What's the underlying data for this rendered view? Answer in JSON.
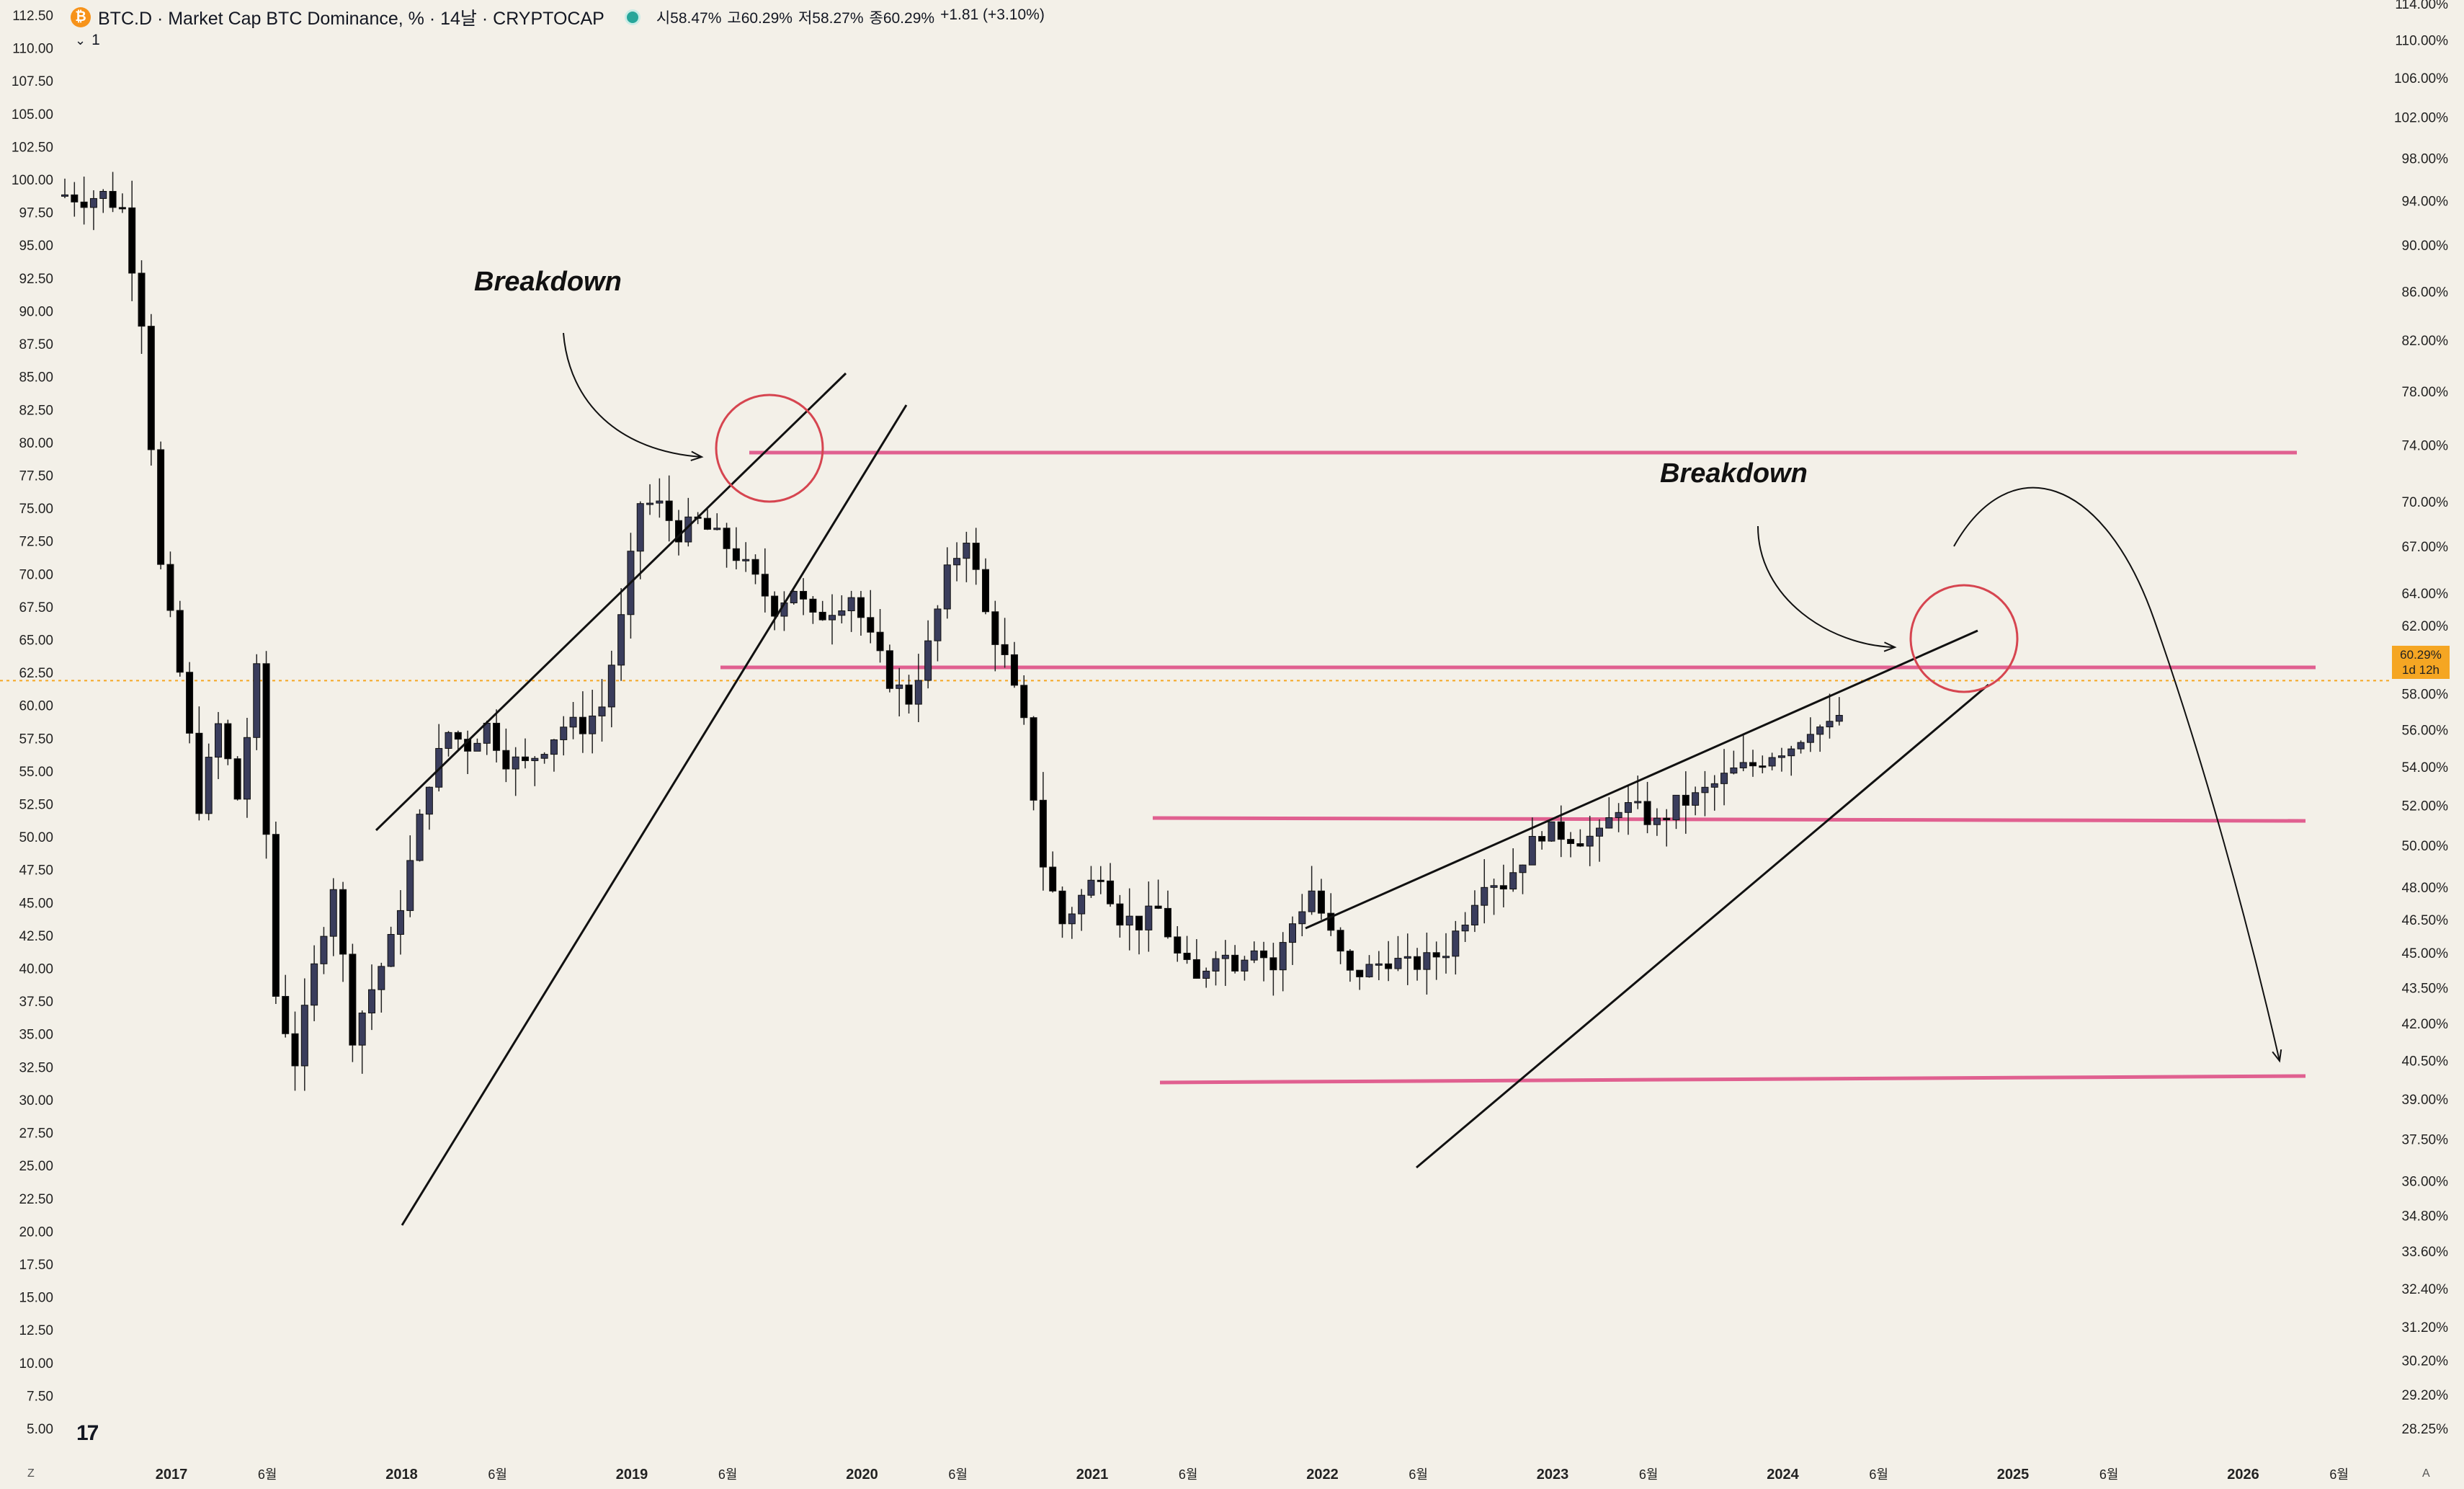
{
  "header": {
    "symbol_icon": "bitcoin-icon",
    "coin_glyph": "₿",
    "title": "BTC.D · Market Cap BTC Dominance, % · 14날 · CRYPTOCAP",
    "open_label": "시",
    "open_value": "58.47%",
    "high_label": "고",
    "high_value": "60.29%",
    "low_label": "저",
    "low_value": "58.27%",
    "close_label": "종",
    "close_value": "60.29%",
    "change": "+1.81 (+3.10%)",
    "collapse_count": "1"
  },
  "price_tag": {
    "value": "60.29%",
    "countdown": "1d 12h"
  },
  "annotations": {
    "breakdown_1": "Breakdown",
    "breakdown_2": "Breakdown"
  },
  "footer": {
    "tv_logo": "17",
    "left_btn": "Z",
    "right_btn": "A"
  },
  "colors": {
    "background": "#f3f0e8",
    "candle_up": "#3a3d5c",
    "candle_down": "#000000",
    "level_line": "#e06090",
    "circle": "#d64550",
    "current_price_line": "#f5a623"
  },
  "chart_data": {
    "type": "candlestick",
    "title": "BTC.D · Market Cap BTC Dominance, % · 14날 · CRYPTOCAP",
    "interval": "14날",
    "x_ticks": [
      "2017",
      "6월",
      "2018",
      "6월",
      "2019",
      "6월",
      "2020",
      "6월",
      "2021",
      "6월",
      "2022",
      "6월",
      "2023",
      "6월",
      "2024",
      "6월",
      "2025",
      "6월",
      "2026",
      "6월"
    ],
    "left_axis": {
      "ylim": [
        5,
        112.5
      ],
      "ticks": [
        "112.50",
        "110.00",
        "107.50",
        "105.00",
        "102.50",
        "100.00",
        "97.50",
        "95.00",
        "92.50",
        "90.00",
        "87.50",
        "85.00",
        "82.50",
        "80.00",
        "77.50",
        "75.00",
        "72.50",
        "70.00",
        "67.50",
        "65.00",
        "62.50",
        "60.00",
        "57.50",
        "55.00",
        "52.50",
        "50.00",
        "47.50",
        "45.00",
        "42.50",
        "40.00",
        "37.50",
        "35.00",
        "32.50",
        "30.00",
        "27.50",
        "25.00",
        "22.50",
        "20.00",
        "17.50",
        "15.00",
        "12.50",
        "10.00",
        "7.50",
        "5.00"
      ]
    },
    "right_axis": {
      "scale": "log",
      "ticks": [
        "114.00%",
        "110.00%",
        "106.00%",
        "102.00%",
        "98.00%",
        "94.00%",
        "90.00%",
        "86.00%",
        "82.00%",
        "78.00%",
        "74.00%",
        "70.00%",
        "67.00%",
        "64.00%",
        "62.00%",
        "60.29%",
        "58.00%",
        "56.00%",
        "54.00%",
        "52.00%",
        "50.00%",
        "48.00%",
        "46.50%",
        "45.00%",
        "43.50%",
        "42.00%",
        "40.50%",
        "39.00%",
        "37.50%",
        "36.00%",
        "34.80%",
        "33.60%",
        "32.40%",
        "31.20%",
        "30.20%",
        "29.20%",
        "28.25%"
      ]
    },
    "close_path": [
      [
        "2017-01",
        98.9
      ],
      [
        "2017-02",
        98.6
      ],
      [
        "2017-03",
        98.9
      ],
      [
        "2017-04",
        97.8
      ],
      [
        "2017-05",
        89.5
      ],
      [
        "2017-06",
        70.5
      ],
      [
        "2017-07",
        62.5
      ],
      [
        "2017-08",
        52.5
      ],
      [
        "2017-09",
        58.5
      ],
      [
        "2017-10",
        53.0
      ],
      [
        "2017-11",
        62.5
      ],
      [
        "2017-12",
        38.0
      ],
      [
        "2018-01",
        33.0
      ],
      [
        "2018-02",
        40.0
      ],
      [
        "2018-03",
        46.5
      ],
      [
        "2018-04",
        35.0
      ],
      [
        "2018-05",
        38.5
      ],
      [
        "2018-06",
        42.0
      ],
      [
        "2018-07",
        48.0
      ],
      [
        "2018-08",
        54.5
      ],
      [
        "2018-09",
        58.0
      ],
      [
        "2018-10",
        57.0
      ],
      [
        "2018-11",
        58.5
      ],
      [
        "2018-12",
        56.0
      ],
      [
        "2019-01",
        55.5
      ],
      [
        "2019-02",
        57.0
      ],
      [
        "2019-03",
        58.5
      ],
      [
        "2019-04",
        58.5
      ],
      [
        "2019-05",
        60.0
      ],
      [
        "2019-06",
        66.5
      ],
      [
        "2019-07",
        75.5
      ],
      [
        "2019-08",
        75.2
      ],
      [
        "2019-09",
        73.2
      ],
      [
        "2019-10",
        74.0
      ],
      [
        "2019-11",
        72.8
      ],
      [
        "2019-12",
        71.5
      ],
      [
        "2020-01",
        69.5
      ],
      [
        "2020-02",
        67.5
      ],
      [
        "2020-03",
        69.0
      ],
      [
        "2020-04",
        66.5
      ],
      [
        "2020-05",
        67.5
      ],
      [
        "2020-06",
        68.5
      ],
      [
        "2020-07",
        65.0
      ],
      [
        "2020-08",
        62.0
      ],
      [
        "2020-09",
        60.5
      ],
      [
        "2020-10",
        64.5
      ],
      [
        "2020-11",
        70.0
      ],
      [
        "2020-12",
        73.0
      ],
      [
        "2021-01",
        67.0
      ],
      [
        "2021-02",
        63.5
      ],
      [
        "2021-03",
        58.5
      ],
      [
        "2021-04",
        48.0
      ],
      [
        "2021-05",
        43.5
      ],
      [
        "2021-06",
        45.5
      ],
      [
        "2021-07",
        47.5
      ],
      [
        "2021-08",
        44.0
      ],
      [
        "2021-09",
        43.5
      ],
      [
        "2021-10",
        44.5
      ],
      [
        "2021-11",
        41.0
      ],
      [
        "2021-12",
        39.0
      ],
      [
        "2022-01",
        41.5
      ],
      [
        "2022-02",
        40.5
      ],
      [
        "2022-03",
        42.0
      ],
      [
        "2022-04",
        40.0
      ],
      [
        "2022-05",
        43.5
      ],
      [
        "2022-06",
        46.0
      ],
      [
        "2022-07",
        42.5
      ],
      [
        "2022-08",
        39.5
      ],
      [
        "2022-09",
        40.0
      ],
      [
        "2022-10",
        40.8
      ],
      [
        "2022-11",
        40.2
      ],
      [
        "2022-12",
        40.6
      ],
      [
        "2023-01",
        41.5
      ],
      [
        "2023-02",
        44.0
      ],
      [
        "2023-03",
        47.0
      ],
      [
        "2023-04",
        46.5
      ],
      [
        "2023-05",
        48.5
      ],
      [
        "2023-06",
        50.5
      ],
      [
        "2023-07",
        50.3
      ],
      [
        "2023-08",
        50.0
      ],
      [
        "2023-09",
        50.0
      ],
      [
        "2023-10",
        52.5
      ],
      [
        "2023-11",
        52.0
      ],
      [
        "2023-12",
        51.0
      ],
      [
        "2024-01",
        52.5
      ],
      [
        "2024-02",
        53.0
      ],
      [
        "2024-03",
        54.0
      ],
      [
        "2024-04",
        55.0
      ],
      [
        "2024-05",
        55.5
      ],
      [
        "2024-06",
        56.5
      ],
      [
        "2024-07",
        57.0
      ],
      [
        "2024-08",
        58.5
      ],
      [
        "2024-09",
        58.3
      ],
      [
        "2024-10",
        60.29
      ]
    ],
    "horizontal_levels": [
      74.0,
      60.29,
      51.5,
      40.2
    ],
    "current_price": 60.29
  }
}
